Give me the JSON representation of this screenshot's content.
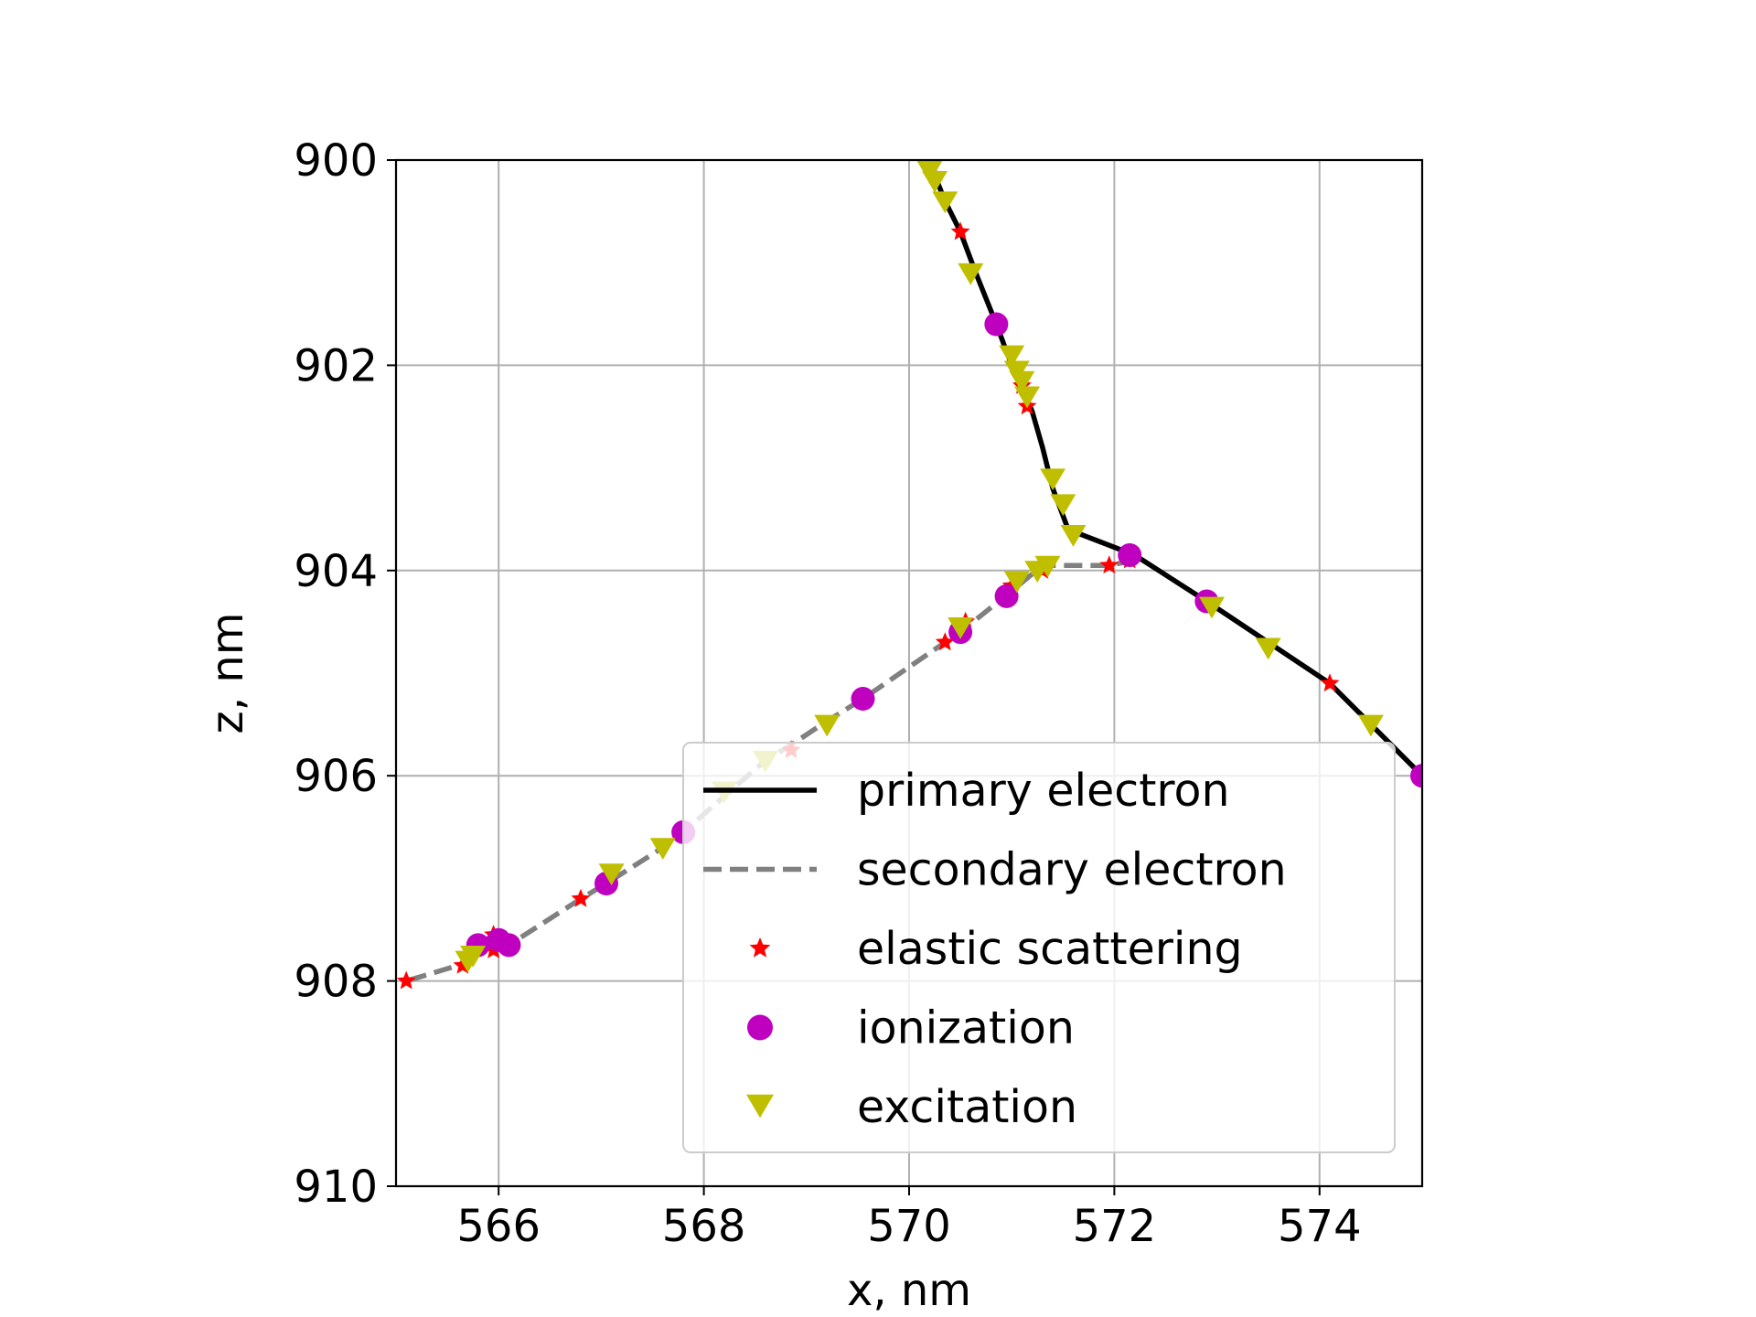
{
  "chart_data": {
    "type": "line",
    "xlabel": "x, nm",
    "ylabel": "z, nm",
    "xlim": [
      565,
      575
    ],
    "ylim": [
      910,
      900
    ],
    "y_axis_inverted": true,
    "x_ticks": [
      "566",
      "568",
      "570",
      "572",
      "574"
    ],
    "y_ticks": [
      "900",
      "902",
      "904",
      "906",
      "908",
      "910"
    ],
    "grid": true,
    "legend_position": "lower-right",
    "series": [
      {
        "name": "primary electron",
        "kind": "line",
        "color": "#000000",
        "style": "solid",
        "points": [
          [
            570.15,
            900.0
          ],
          [
            570.25,
            900.15
          ],
          [
            570.35,
            900.4
          ],
          [
            570.5,
            900.7
          ],
          [
            570.65,
            901.1
          ],
          [
            570.85,
            901.6
          ],
          [
            571.0,
            902.0
          ],
          [
            571.2,
            902.45
          ],
          [
            571.3,
            902.8
          ],
          [
            571.4,
            903.2
          ],
          [
            571.55,
            903.6
          ],
          [
            572.2,
            903.85
          ],
          [
            572.9,
            904.3
          ],
          [
            573.5,
            904.7
          ],
          [
            574.1,
            905.1
          ],
          [
            574.5,
            905.5
          ],
          [
            575.0,
            906.0
          ]
        ]
      },
      {
        "name": "secondary electron",
        "kind": "line",
        "color": "#808080",
        "style": "dashed",
        "points": [
          [
            572.2,
            903.9
          ],
          [
            571.95,
            903.95
          ],
          [
            571.3,
            903.95
          ],
          [
            571.0,
            904.2
          ],
          [
            570.5,
            904.6
          ],
          [
            570.35,
            904.7
          ],
          [
            569.55,
            905.25
          ],
          [
            569.15,
            905.5
          ],
          [
            568.85,
            905.7
          ],
          [
            568.6,
            905.85
          ],
          [
            568.2,
            906.2
          ],
          [
            567.8,
            906.55
          ],
          [
            567.6,
            906.7
          ],
          [
            567.05,
            907.05
          ],
          [
            566.8,
            907.2
          ],
          [
            566.1,
            907.65
          ],
          [
            565.95,
            907.55
          ],
          [
            565.8,
            907.65
          ],
          [
            565.7,
            907.8
          ],
          [
            565.6,
            907.85
          ],
          [
            565.1,
            908.0
          ]
        ]
      },
      {
        "name": "elastic scattering",
        "kind": "markers",
        "color": "#ff0000",
        "marker": "star",
        "points": [
          [
            570.25,
            900.15
          ],
          [
            570.5,
            900.7
          ],
          [
            571.1,
            902.2
          ],
          [
            571.15,
            902.4
          ],
          [
            572.15,
            903.9
          ],
          [
            571.95,
            903.95
          ],
          [
            571.3,
            904.0
          ],
          [
            571.0,
            904.15
          ],
          [
            570.55,
            904.5
          ],
          [
            570.35,
            904.7
          ],
          [
            568.85,
            905.75
          ],
          [
            566.8,
            907.2
          ],
          [
            565.95,
            907.55
          ],
          [
            565.95,
            907.7
          ],
          [
            565.65,
            907.85
          ],
          [
            565.1,
            908.0
          ],
          [
            574.1,
            905.1
          ]
        ]
      },
      {
        "name": "ionization",
        "kind": "markers",
        "color": "#bf00bf",
        "marker": "circle",
        "points": [
          [
            570.85,
            901.6
          ],
          [
            572.15,
            903.85
          ],
          [
            572.9,
            904.3
          ],
          [
            575.0,
            906.0
          ],
          [
            570.95,
            904.25
          ],
          [
            570.5,
            904.6
          ],
          [
            569.55,
            905.25
          ],
          [
            567.8,
            906.55
          ],
          [
            567.05,
            907.05
          ],
          [
            566.1,
            907.65
          ],
          [
            565.8,
            907.65
          ],
          [
            566.0,
            907.6
          ]
        ]
      },
      {
        "name": "excitation",
        "kind": "markers",
        "color": "#bfbf00",
        "marker": "triangle-down",
        "points": [
          [
            570.2,
            900.1
          ],
          [
            570.25,
            900.2
          ],
          [
            570.35,
            900.4
          ],
          [
            570.6,
            901.1
          ],
          [
            571.0,
            901.9
          ],
          [
            571.05,
            902.05
          ],
          [
            571.1,
            902.15
          ],
          [
            571.15,
            902.3
          ],
          [
            571.4,
            903.1
          ],
          [
            571.5,
            903.35
          ],
          [
            571.6,
            903.65
          ],
          [
            571.35,
            903.95
          ],
          [
            571.25,
            904.0
          ],
          [
            571.05,
            904.1
          ],
          [
            570.5,
            904.55
          ],
          [
            572.95,
            904.35
          ],
          [
            573.5,
            904.75
          ],
          [
            574.5,
            905.5
          ],
          [
            569.2,
            905.5
          ],
          [
            568.6,
            905.85
          ],
          [
            568.2,
            906.15
          ],
          [
            567.6,
            906.7
          ],
          [
            567.1,
            906.95
          ],
          [
            565.75,
            907.75
          ],
          [
            565.7,
            907.8
          ]
        ]
      }
    ],
    "legend": [
      {
        "label": "primary electron",
        "kind": "line"
      },
      {
        "label": "secondary electron",
        "kind": "line"
      },
      {
        "label": "elastic scattering",
        "kind": "star"
      },
      {
        "label": "ionization",
        "kind": "circle"
      },
      {
        "label": "excitation",
        "kind": "triangle-down"
      }
    ]
  }
}
